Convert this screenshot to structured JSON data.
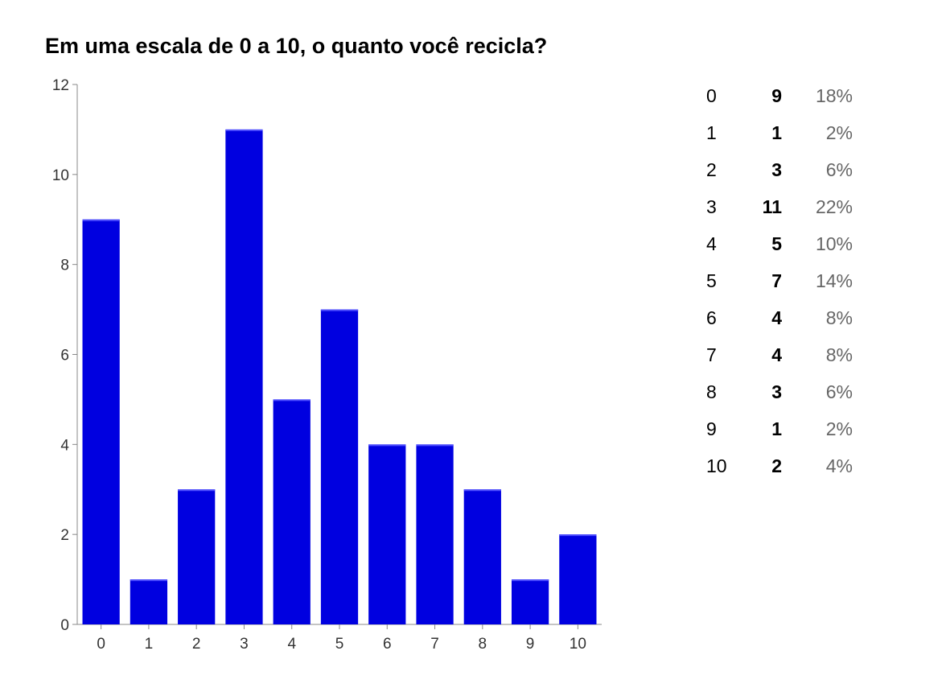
{
  "chart_data": {
    "type": "bar",
    "title": "Em uma escala de 0 a 10, o quanto você recicla?",
    "xlabel": "",
    "ylabel": "",
    "categories": [
      "0",
      "1",
      "2",
      "3",
      "4",
      "5",
      "6",
      "7",
      "8",
      "9",
      "10"
    ],
    "values": [
      9,
      1,
      3,
      11,
      5,
      7,
      4,
      4,
      3,
      1,
      2
    ],
    "ylim": [
      0,
      12
    ],
    "yticks": [
      "0",
      "2",
      "4",
      "6",
      "8",
      "10",
      "12"
    ],
    "bar_color": "#0000e0",
    "grid": false,
    "legend": "none"
  },
  "summary": {
    "rows": [
      {
        "label": "0",
        "count": "9",
        "percent": "18%"
      },
      {
        "label": "1",
        "count": "1",
        "percent": "2%"
      },
      {
        "label": "2",
        "count": "3",
        "percent": "6%"
      },
      {
        "label": "3",
        "count": "11",
        "percent": "22%"
      },
      {
        "label": "4",
        "count": "5",
        "percent": "10%"
      },
      {
        "label": "5",
        "count": "7",
        "percent": "14%"
      },
      {
        "label": "6",
        "count": "4",
        "percent": "8%"
      },
      {
        "label": "7",
        "count": "4",
        "percent": "8%"
      },
      {
        "label": "8",
        "count": "3",
        "percent": "6%"
      },
      {
        "label": "9",
        "count": "1",
        "percent": "2%"
      },
      {
        "label": "10",
        "count": "2",
        "percent": "4%"
      }
    ]
  }
}
